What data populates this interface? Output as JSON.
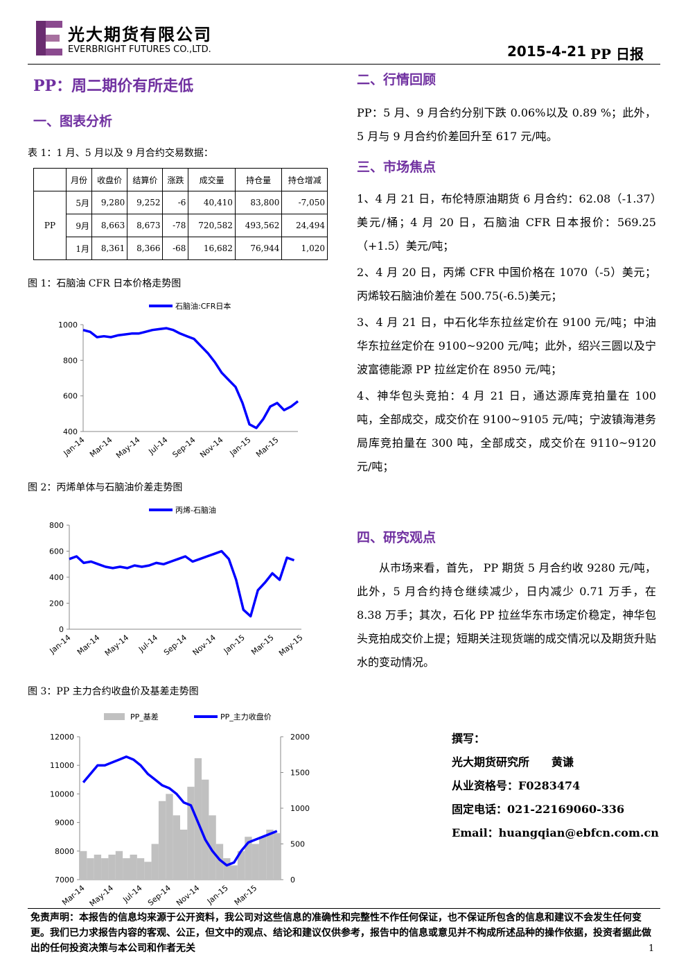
{
  "header": {
    "company_cn": "光大期货有限公司",
    "company_en": "EVERBRIGHT FUTURES CO.,LTD.",
    "date": "2015-4-21",
    "report": "PP 日报"
  },
  "left": {
    "title": "PP：周二期价有所走低",
    "section1": "一、图表分析",
    "table_caption": "表 1：1 月、5 月以及 9 月合约交易数据：",
    "table": {
      "header": [
        "月份",
        "收盘价",
        "结算价",
        "涨跌",
        "成交量",
        "持仓量",
        "持仓增减"
      ],
      "product": "PP",
      "rows": [
        [
          "5月",
          "9,280",
          "9,252",
          "-6",
          "40,410",
          "83,800",
          "-7,050"
        ],
        [
          "9月",
          "8,663",
          "8,673",
          "-78",
          "720,582",
          "493,562",
          "24,494"
        ],
        [
          "1月",
          "8,361",
          "8,366",
          "-68",
          "16,682",
          "76,944",
          "1,020"
        ]
      ]
    }
  },
  "right": {
    "sections": [
      {
        "title": "二、行情回顾",
        "text": "PP：5 月、9 月合约分别下跌 0.06%以及 0.89 %；此外，5 月与 9 月合约价差回升至 617 元/吨。"
      },
      {
        "title": "三、市场焦点",
        "items": [
          "1、4 月 21 日，布伦特原油期货 6 月合约：62.08（-1.37）美元/桶；4 月 20 日，石脑油 CFR 日本报价：569.25（+1.5）美元/吨；",
          "2、4 月 20 日，丙烯 CFR 中国价格在 1070（-5）美元；丙烯较石脑油价差在 500.75(-6.5)美元；",
          "3、4 月 21 日，中石化华东拉丝定价在 9100 元/吨；中油华东拉丝定价在 9100~9200 元/吨；此外，绍兴三圆以及宁波富德能源 PP 拉丝定价在 8950 元/吨；",
          "4、神华包头竞拍：4 月 21 日，通达源库竞拍量在 100 吨，全部成交，成交价在 9100~9105 元/吨；宁波镇海港务局库竞拍量在 300 吨，全部成交，成交价在 9110~9120 元/吨；"
        ]
      },
      {
        "title": "四、研究观点",
        "text": "从市场来看，首先， PP 期货 5 月合约收 9280 元/吨，此外，5 月合约持仓继续减少，日内减少 0.71 万手，在 8.38 万手；其次，石化 PP 拉丝华东市场定价稳定，神华包头竞拍成交价上提；短期关注现货端的成交情况以及期货升贴水的变动情况。"
      }
    ],
    "author": [
      "撰写：",
      "光大期货研究所　　黄谦",
      "从业资格号：F0283474",
      "固定电话：021-22169060-336",
      "Email：huangqian@ebfcn.com.cn"
    ]
  },
  "footer": {
    "disclaimer": "免责声明：本报告的信息均来源于公开资料，我公司对这些信息的准确性和完整性不作任何保证，也不保证所包含的信息和建议不会发生任何变更。我们已力求报告内容的客观、公正，但文中的观点、结论和建议仅供参考，报告中的信息或意见并不构成所述品种的操作依据，投资者据此做出的任何投资决策与本公司和作者无关",
    "page": "1"
  },
  "chart_data": [
    {
      "type": "line",
      "title": "图 1：石脑油 CFR 日本价格走势图",
      "categories": [
        "Jan-14",
        null,
        null,
        null,
        "Mar-14",
        null,
        null,
        null,
        "May-14",
        null,
        null,
        null,
        "Jul-14",
        null,
        null,
        null,
        "Sep-14",
        null,
        null,
        null,
        "Nov-14",
        null,
        null,
        null,
        "Jan-15",
        null,
        null,
        null,
        "Mar-15",
        null,
        null,
        null
      ],
      "series": [
        {
          "name": "石脑油:CFR日本",
          "color": "#0000ff",
          "values": [
            970,
            960,
            930,
            935,
            930,
            940,
            945,
            950,
            950,
            960,
            970,
            975,
            980,
            970,
            950,
            935,
            920,
            880,
            840,
            790,
            730,
            690,
            650,
            560,
            440,
            420,
            470,
            540,
            560,
            520,
            540,
            570
          ]
        }
      ],
      "ylim": [
        400,
        1000
      ],
      "yticks": [
        400,
        600,
        800,
        1000
      ],
      "grid": false
    },
    {
      "type": "line",
      "title": "图 2：丙烯单体与石脑油价差走势图",
      "categories": [
        "Jan-14",
        null,
        null,
        null,
        "Mar-14",
        null,
        null,
        null,
        "May-14",
        null,
        null,
        null,
        "Jul-14",
        null,
        null,
        null,
        "Sep-14",
        null,
        null,
        null,
        "Nov-14",
        null,
        null,
        null,
        "Jan-15",
        null,
        null,
        null,
        "Mar-15",
        null,
        null,
        null,
        "May-15"
      ],
      "series": [
        {
          "name": "丙烯-石脑油",
          "color": "#0000ff",
          "values": [
            540,
            560,
            510,
            520,
            500,
            480,
            470,
            480,
            470,
            490,
            480,
            490,
            510,
            500,
            520,
            540,
            560,
            520,
            540,
            560,
            580,
            600,
            540,
            380,
            150,
            100,
            300,
            360,
            430,
            380,
            550,
            530,
            null
          ]
        }
      ],
      "ylim": [
        0,
        800
      ],
      "yticks": [
        0,
        200,
        400,
        600,
        800
      ],
      "grid": false
    },
    {
      "type": "bar-line",
      "title": "图 3：PP 主力合约收盘价及基差走势图",
      "categories": [
        "Mar-14",
        null,
        null,
        null,
        "May-14",
        null,
        null,
        null,
        "Jul-14",
        null,
        null,
        null,
        "Sep-14",
        null,
        null,
        null,
        "Nov-14",
        null,
        null,
        null,
        "Jan-15",
        null,
        null,
        null,
        "Mar-15",
        null,
        null,
        null
      ],
      "series": [
        {
          "name": "PP_基差",
          "type": "bar",
          "axis": "y2",
          "color": "#c0c0c0",
          "values": [
            400,
            300,
            350,
            300,
            350,
            400,
            300,
            350,
            300,
            250,
            500,
            1100,
            1200,
            900,
            700,
            1300,
            1700,
            1400,
            900,
            500,
            300,
            200,
            400,
            600,
            500,
            600,
            700,
            650
          ]
        },
        {
          "name": "PP_主力收盘价",
          "type": "line",
          "color": "#0000ff",
          "values": [
            10400,
            10700,
            11000,
            11000,
            11100,
            11200,
            11300,
            11200,
            11000,
            10700,
            10500,
            10300,
            10200,
            10000,
            9700,
            9600,
            9000,
            8400,
            8000,
            7700,
            7500,
            7600,
            8000,
            8300,
            8400,
            8500,
            8600,
            8700
          ]
        }
      ],
      "ylim": [
        7000,
        12000
      ],
      "yticks": [
        7000,
        8000,
        9000,
        10000,
        11000,
        12000
      ],
      "y2lim": [
        0,
        2000
      ],
      "y2ticks": [
        0,
        500,
        1000,
        1500,
        2000
      ],
      "grid": false
    }
  ]
}
